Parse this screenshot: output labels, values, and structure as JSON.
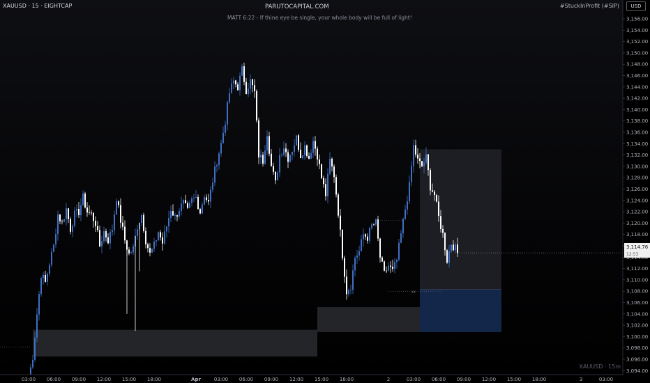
{
  "header": {
    "symbol": "XAUUSD · 15 · EIGHTCAP",
    "brand": "PARUTOCAPITAL.COM",
    "quote": "MATT 6:22 - If thine eye be single, your whole body will be full of light!",
    "tagline": "#StuckInProfit (#SIP)",
    "currency": "USD"
  },
  "footer": {
    "watermark": "XAUUSD · 15m"
  },
  "last_price": {
    "value": "3,114.76",
    "countdown": "12:53"
  },
  "colors": {
    "up": "#3f70c4",
    "down": "#ffffff",
    "zone": "#2a2b30",
    "box_upper": "#1e2026",
    "box_lower": "#13294d",
    "axis_text": "#b2b5be"
  },
  "chart_data": {
    "type": "candlestick",
    "title": "",
    "xlabel": "",
    "ylabel": "",
    "ylim": [
      3093.5,
      3156.5
    ],
    "y_ticks": [
      "3,094.00",
      "3,096.00",
      "3,098.00",
      "3,100.00",
      "3,102.00",
      "3,104.00",
      "3,106.00",
      "3,108.00",
      "3,110.00",
      "3,112.00",
      "3,114.00",
      "3,116.00",
      "3,118.00",
      "3,120.00",
      "3,122.00",
      "3,124.00",
      "3,126.00",
      "3,128.00",
      "3,130.00",
      "3,132.00",
      "3,134.00",
      "3,136.00",
      "3,138.00",
      "3,140.00",
      "3,142.00",
      "3,144.00",
      "3,146.00",
      "3,148.00",
      "3,150.00",
      "3,152.00",
      "3,154.00",
      "3,156.00"
    ],
    "x_ticks": [
      {
        "i": 0,
        "label": "03:00"
      },
      {
        "i": 12,
        "label": "06:00"
      },
      {
        "i": 24,
        "label": "09:00"
      },
      {
        "i": 36,
        "label": "12:00"
      },
      {
        "i": 48,
        "label": "15:00"
      },
      {
        "i": 60,
        "label": "18:00"
      },
      {
        "i": 80,
        "label": "Apr",
        "bold": true
      },
      {
        "i": 92,
        "label": "03:00"
      },
      {
        "i": 104,
        "label": "06:00"
      },
      {
        "i": 116,
        "label": "09:00"
      },
      {
        "i": 128,
        "label": "12:00"
      },
      {
        "i": 140,
        "label": "15:00"
      },
      {
        "i": 152,
        "label": "18:00"
      },
      {
        "i": 172,
        "label": "2"
      },
      {
        "i": 184,
        "label": "03:00"
      },
      {
        "i": 196,
        "label": "06:00"
      },
      {
        "i": 208,
        "label": "09:00"
      },
      {
        "i": 220,
        "label": "12:00"
      },
      {
        "i": 232,
        "label": "15:00"
      },
      {
        "i": 244,
        "label": "18:00"
      },
      {
        "i": 264,
        "label": "3"
      },
      {
        "i": 276,
        "label": "03:00"
      }
    ],
    "x_count": 280,
    "last_price": 3114.76,
    "close_path": [
      [
        0,
        3092.5
      ],
      [
        2,
        3096.5
      ],
      [
        4,
        3104.0
      ],
      [
        6,
        3111.0
      ],
      [
        8,
        3109.5
      ],
      [
        10,
        3113.0
      ],
      [
        12,
        3116.0
      ],
      [
        14,
        3121.5
      ],
      [
        16,
        3120.0
      ],
      [
        18,
        3122.5
      ],
      [
        20,
        3119.0
      ],
      [
        22,
        3121.5
      ],
      [
        24,
        3122.0
      ],
      [
        26,
        3124.5
      ],
      [
        28,
        3122.0
      ],
      [
        30,
        3121.5
      ],
      [
        32,
        3120.0
      ],
      [
        34,
        3116.0
      ],
      [
        36,
        3118.5
      ],
      [
        38,
        3117.0
      ],
      [
        40,
        3119.0
      ],
      [
        42,
        3124.5
      ],
      [
        44,
        3120.5
      ],
      [
        46,
        3117.0
      ],
      [
        48,
        3114.5
      ],
      [
        50,
        3115.5
      ],
      [
        52,
        3119.5
      ],
      [
        54,
        3121.5
      ],
      [
        56,
        3117.0
      ],
      [
        58,
        3114.5
      ],
      [
        60,
        3116.0
      ],
      [
        62,
        3118.5
      ],
      [
        64,
        3116.5
      ],
      [
        66,
        3119.5
      ],
      [
        68,
        3122.5
      ],
      [
        70,
        3121.0
      ],
      [
        72,
        3122.5
      ],
      [
        74,
        3123.5
      ],
      [
        76,
        3122.0
      ],
      [
        78,
        3124.0
      ],
      [
        80,
        3124.5
      ],
      [
        82,
        3122.0
      ],
      [
        84,
        3125.0
      ],
      [
        86,
        3123.5
      ],
      [
        88,
        3127.5
      ],
      [
        90,
        3131.0
      ],
      [
        92,
        3134.0
      ],
      [
        94,
        3138.0
      ],
      [
        96,
        3143.0
      ],
      [
        98,
        3145.0
      ],
      [
        100,
        3144.0
      ],
      [
        102,
        3147.0
      ],
      [
        104,
        3143.5
      ],
      [
        106,
        3145.0
      ],
      [
        108,
        3143.0
      ],
      [
        110,
        3132.0
      ],
      [
        112,
        3131.0
      ],
      [
        114,
        3136.0
      ],
      [
        116,
        3130.0
      ],
      [
        118,
        3127.0
      ],
      [
        120,
        3132.0
      ],
      [
        122,
        3133.5
      ],
      [
        124,
        3131.5
      ],
      [
        126,
        3133.0
      ],
      [
        128,
        3135.0
      ],
      [
        130,
        3132.0
      ],
      [
        132,
        3133.5
      ],
      [
        134,
        3131.5
      ],
      [
        136,
        3134.5
      ],
      [
        138,
        3132.0
      ],
      [
        140,
        3128.0
      ],
      [
        142,
        3125.0
      ],
      [
        144,
        3131.0
      ],
      [
        146,
        3128.5
      ],
      [
        148,
        3122.0
      ],
      [
        150,
        3114.5
      ],
      [
        152,
        3108.0
      ],
      [
        154,
        3109.0
      ],
      [
        156,
        3114.0
      ],
      [
        158,
        3115.0
      ],
      [
        160,
        3118.0
      ],
      [
        162,
        3117.5
      ],
      [
        164,
        3119.5
      ],
      [
        166,
        3120.0
      ],
      [
        168,
        3114.0
      ],
      [
        170,
        3111.0
      ],
      [
        172,
        3112.5
      ],
      [
        174,
        3111.5
      ],
      [
        176,
        3113.5
      ],
      [
        178,
        3118.0
      ],
      [
        180,
        3122.5
      ],
      [
        182,
        3126.5
      ],
      [
        184,
        3133.5
      ],
      [
        186,
        3131.0
      ],
      [
        188,
        3130.0
      ],
      [
        190,
        3131.5
      ],
      [
        192,
        3126.5
      ],
      [
        194,
        3125.0
      ],
      [
        196,
        3121.0
      ],
      [
        198,
        3118.0
      ],
      [
        200,
        3113.5
      ],
      [
        202,
        3116.5
      ],
      [
        204,
        3115.5
      ],
      [
        205,
        3114.76
      ]
    ],
    "zones": [
      {
        "from": 2,
        "to": 138,
        "top": 3101.2,
        "bottom": 3096.5
      },
      {
        "from": 138,
        "to": 187,
        "top": 3105.2,
        "bottom": 3100.8
      }
    ],
    "position": {
      "from": 187,
      "to": 226,
      "entry": 3108.3,
      "target": 3133.0,
      "stop": 3100.8
    },
    "marker_label": "xx"
  }
}
